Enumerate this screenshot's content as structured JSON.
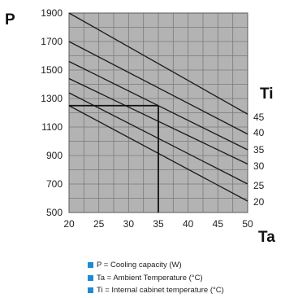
{
  "colors": {
    "plot_bg": "#b3b3b3",
    "grid": "#7a7a7a",
    "line": "#1a1a1a",
    "legend_swatch": "#1e8ad6"
  },
  "chart_data": {
    "type": "line",
    "xlabel": "Ta",
    "ylabel": "P",
    "series_label": "Ti",
    "xlim": [
      20,
      50
    ],
    "ylim": [
      500,
      1900
    ],
    "x_ticks": [
      20,
      25,
      30,
      35,
      40,
      45,
      50
    ],
    "y_ticks": [
      500,
      700,
      900,
      1100,
      1300,
      1500,
      1700,
      1900
    ],
    "grid": true,
    "series": [
      {
        "name": "45",
        "x": [
          20,
          50
        ],
        "y": [
          1900,
          1190
        ]
      },
      {
        "name": "40",
        "x": [
          20,
          50
        ],
        "y": [
          1700,
          1050
        ]
      },
      {
        "name": "35",
        "x": [
          20,
          50
        ],
        "y": [
          1560,
          940
        ]
      },
      {
        "name": "30",
        "x": [
          20,
          50
        ],
        "y": [
          1440,
          840
        ]
      },
      {
        "name": "25",
        "x": [
          20,
          50
        ],
        "y": [
          1340,
          700
        ]
      },
      {
        "name": "20",
        "x": [
          20,
          50
        ],
        "y": [
          1250,
          580
        ]
      }
    ],
    "example": {
      "x": 35,
      "y": 1250
    }
  },
  "legend": [
    "P = Cooling capacity (W)",
    "Ta = Ambient Temperature (°C)",
    "Ti = Internal cabinet temperature (°C)"
  ]
}
